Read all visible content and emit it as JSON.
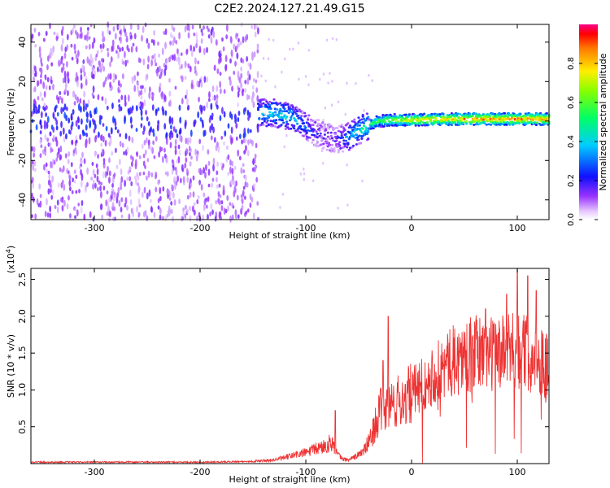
{
  "title": "C2E2.2024.127.21.49.G15",
  "chart_data": [
    {
      "type": "heatmap",
      "xlabel": "Height of straight line (km)",
      "ylabel": "Frequency (Hz)",
      "xlim": [
        -360,
        130
      ],
      "ylim": [
        -50,
        49
      ],
      "xticks": [
        -300,
        -200,
        -100,
        0,
        100
      ],
      "yticks": [
        -40,
        -20,
        0,
        20,
        40
      ],
      "colorbar": {
        "label": "Normalized spectral amplitude",
        "range": [
          0,
          1
        ],
        "ticks": [
          "0.0",
          "0.2",
          "0.4",
          "0.6",
          "0.8"
        ],
        "tick_values": [
          0.0,
          0.2,
          0.4,
          0.6,
          0.8
        ]
      },
      "noise_region": {
        "x_range": [
          -360,
          -145
        ],
        "freq_range": [
          -50,
          49
        ]
      },
      "trace": {
        "x": [
          -145,
          -130,
          -120,
          -110,
          -100,
          -90,
          -80,
          -70,
          -60,
          -50,
          -40,
          -30,
          -20,
          -10,
          0,
          20,
          40,
          60,
          80,
          100,
          120,
          130
        ],
        "freq": [
          4,
          4,
          3,
          1,
          -3,
          -6,
          -8,
          -9,
          -8,
          -5,
          -2,
          0,
          0.5,
          0.5,
          0.5,
          0.8,
          1,
          1,
          1,
          1,
          1,
          1
        ],
        "amplitude": [
          0.4,
          0.45,
          0.45,
          0.4,
          0.3,
          0.2,
          0.15,
          0.2,
          0.35,
          0.45,
          0.55,
          0.6,
          0.7,
          0.75,
          0.8,
          0.85,
          0.85,
          0.9,
          0.9,
          0.9,
          0.9,
          0.9
        ]
      }
    },
    {
      "type": "line",
      "xlabel": "Height of straight line (km)",
      "ylabel": "SNR (10 * v/v)",
      "multiplier": "(x10",
      "multiplier_exp": "4",
      "multiplier_close": ")",
      "xlim": [
        -360,
        130
      ],
      "ylim": [
        0,
        2.65
      ],
      "xticks": [
        -300,
        -200,
        -100,
        0,
        100
      ],
      "yticks": [
        0.5,
        1.0,
        1.5,
        2.0,
        2.5
      ],
      "ytick_labels": [
        "0.5",
        "1.0",
        "1.5",
        "2.0",
        "2.5"
      ],
      "series": [
        {
          "color": "#ee3333",
          "envelope_x": [
            -360,
            -300,
            -200,
            -150,
            -130,
            -120,
            -110,
            -100,
            -90,
            -80,
            -75,
            -70,
            -65,
            -60,
            -55,
            -50,
            -45,
            -40,
            -35,
            -30,
            -25,
            -20,
            -15,
            -10,
            -5,
            0,
            10,
            20,
            30,
            40,
            50,
            60,
            70,
            80,
            90,
            100,
            110,
            120,
            130
          ],
          "envelope_y": [
            0.02,
            0.02,
            0.02,
            0.03,
            0.05,
            0.08,
            0.12,
            0.15,
            0.2,
            0.25,
            0.3,
            0.12,
            0.06,
            0.05,
            0.08,
            0.12,
            0.18,
            0.3,
            0.5,
            0.7,
            0.75,
            0.8,
            0.82,
            0.85,
            0.9,
            0.95,
            1.1,
            1.2,
            1.3,
            1.4,
            1.45,
            1.5,
            1.5,
            1.5,
            1.5,
            1.55,
            1.5,
            1.4,
            1.35
          ],
          "peaks": [
            {
              "x": -72,
              "y": 0.72
            },
            {
              "x": -22,
              "y": 2.0
            },
            {
              "x": -27,
              "y": 1.4
            },
            {
              "x": 70,
              "y": 2.1
            },
            {
              "x": 100,
              "y": 2.65
            },
            {
              "x": 110,
              "y": 2.55
            },
            {
              "x": 118,
              "y": 2.35
            },
            {
              "x": 90,
              "y": 2.3
            },
            {
              "x": 55,
              "y": 1.9
            }
          ]
        }
      ]
    }
  ]
}
